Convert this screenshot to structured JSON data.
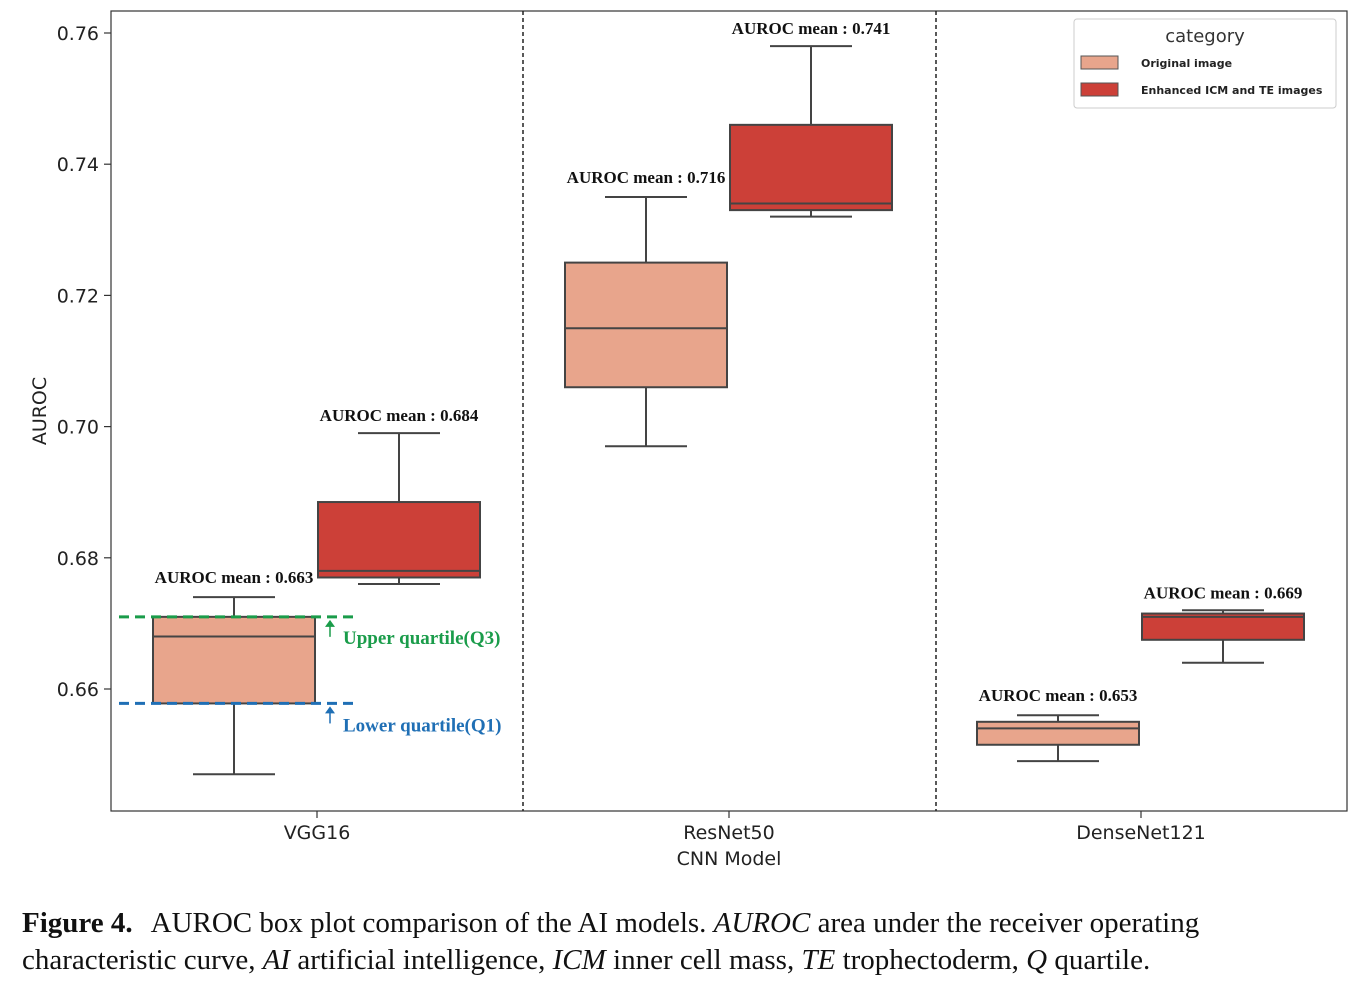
{
  "chart_data": {
    "type": "box",
    "xlabel": "CNN Model",
    "ylabel": "AUROC",
    "ylim": [
      0.642,
      0.764
    ],
    "yticks": [
      "0.66",
      "0.68",
      "0.70",
      "0.72",
      "0.74",
      "0.76"
    ],
    "categories": [
      "VGG16",
      "ResNet50",
      "DenseNet121"
    ],
    "legend": {
      "title": "category",
      "position": "top-right",
      "entries": [
        "Original image",
        "Enhanced ICM and TE images"
      ]
    },
    "series": [
      {
        "name": "Original image",
        "color": "#e8a58c",
        "boxes": [
          {
            "whisker_low": 0.647,
            "q1": 0.6578,
            "median": 0.668,
            "q3": 0.671,
            "whisker_high": 0.674
          },
          {
            "whisker_low": 0.697,
            "q1": 0.706,
            "median": 0.715,
            "q3": 0.725,
            "whisker_high": 0.735
          },
          {
            "whisker_low": 0.649,
            "q1": 0.6515,
            "median": 0.654,
            "q3": 0.655,
            "whisker_high": 0.656
          }
        ]
      },
      {
        "name": "Enhanced ICM and TE images",
        "color": "#cc4038",
        "boxes": [
          {
            "whisker_low": 0.676,
            "q1": 0.677,
            "median": 0.678,
            "q3": 0.6885,
            "whisker_high": 0.699
          },
          {
            "whisker_low": 0.732,
            "q1": 0.733,
            "median": 0.734,
            "q3": 0.746,
            "whisker_high": 0.758
          },
          {
            "whisker_low": 0.664,
            "q1": 0.6675,
            "median": 0.671,
            "q3": 0.6715,
            "whisker_high": 0.672
          }
        ]
      }
    ],
    "mean_labels": [
      [
        "AUROC mean : 0.663",
        "AUROC mean : 0.716",
        "AUROC mean : 0.653"
      ],
      [
        "AUROC mean : 0.684",
        "AUROC mean : 0.741",
        "AUROC mean : 0.669"
      ]
    ],
    "quartile_annotations": {
      "q3_label": "Upper quartile(Q3)",
      "q3_value": 0.671,
      "q3_color": "#1a9c4a",
      "q1_label": "Lower quartile(Q1)",
      "q1_value": 0.6578,
      "q1_color": "#1f6fb5"
    }
  },
  "caption": {
    "figure_label": "Figure 4.",
    "text_1": "AUROC box plot comparison of the AI models. ",
    "term_1": "AUROC",
    "text_2": " area under the receiver operating characteristic curve, ",
    "term_2": "AI",
    "text_3": " artificial intelligence, ",
    "term_3": "ICM",
    "text_4": " inner cell mass, ",
    "term_4": "TE",
    "text_5": " trophectoderm, ",
    "term_5": "Q",
    "text_6": " quartile."
  }
}
